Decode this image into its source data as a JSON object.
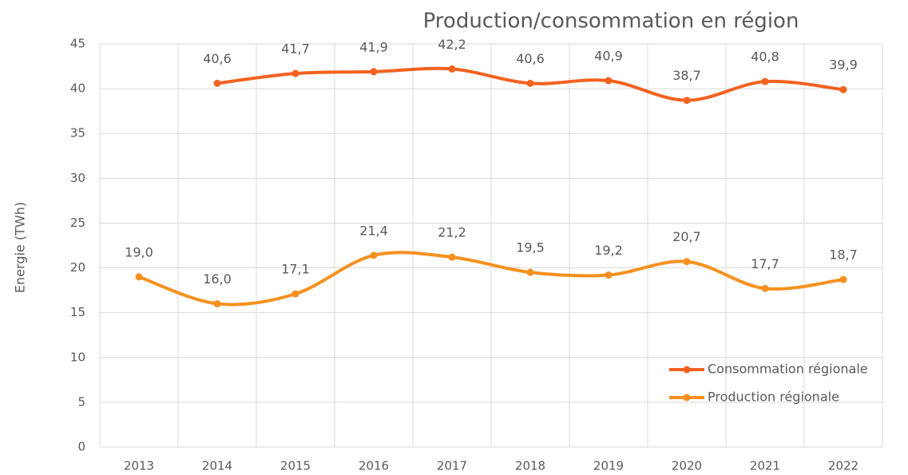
{
  "chart_data": {
    "type": "line",
    "title": "Production/consommation en région",
    "y_label": "Energie (TWh)",
    "categories": [
      "2013",
      "2014",
      "2015",
      "2016",
      "2017",
      "2018",
      "2019",
      "2020",
      "2021",
      "2022"
    ],
    "series": [
      {
        "name": "Consommation régionale",
        "color": "#f4621f",
        "values": [
          null,
          40.6,
          41.7,
          41.9,
          42.2,
          40.6,
          40.9,
          38.7,
          40.8,
          39.9
        ],
        "value_labels": [
          null,
          "40,6",
          "41,7",
          "41,9",
          "42,2",
          "40,6",
          "40,9",
          "38,7",
          "40,8",
          "39,9"
        ]
      },
      {
        "name": "Production régionale",
        "color": "#f7901e",
        "values": [
          19.0,
          16.0,
          17.1,
          21.4,
          21.2,
          19.5,
          19.2,
          20.7,
          17.7,
          18.7
        ],
        "value_labels": [
          "19,0",
          "16,0",
          "17,1",
          "21,4",
          "21,2",
          "19,5",
          "19,2",
          "20,7",
          "17,7",
          "18,7"
        ]
      }
    ],
    "ylim": [
      0,
      45
    ],
    "yticks": [
      0,
      5,
      10,
      15,
      20,
      25,
      30,
      35,
      40,
      45
    ],
    "grid": true,
    "smooth": true,
    "legend": "right"
  }
}
